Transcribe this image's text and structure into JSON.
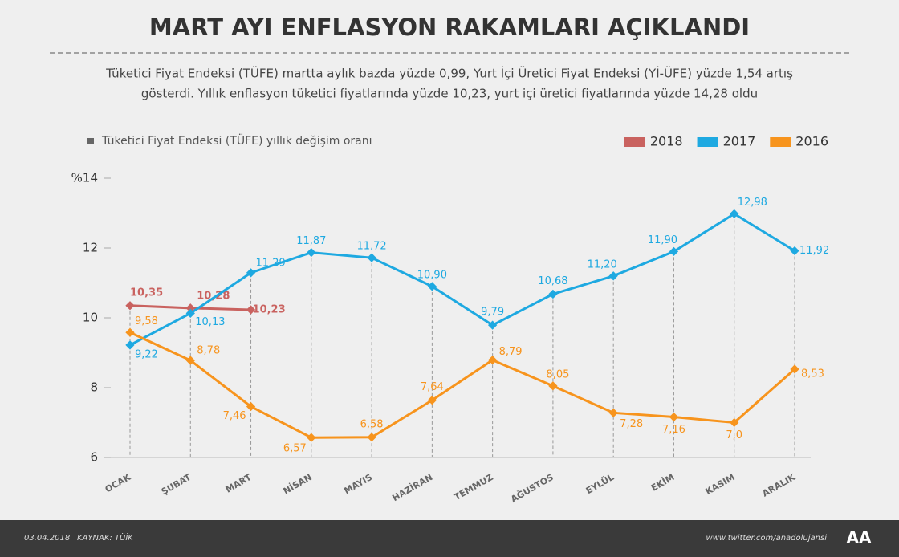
{
  "chart_data": {
    "type": "line",
    "title": "MART AYI ENFLASYON RAKAMLARI AÇIKLANDI",
    "subtitle": [
      "Tüketici Fiyat Endeksi (TÜFE) martta aylık bazda yüzde 0,99, Yurt İçi Üretici Fiyat Endeksi (Yİ-ÜFE) yüzde 1,54 artış",
      "gösterdi. Yıllık enflasyon tüketici fiyatlarında yüzde 10,23, yurt içi üretici fiyatlarında yüzde 14,28 oldu"
    ],
    "caption": "Tüketici Fiyat Endeksi (TÜFE) yıllık değişim oranı",
    "categories": [
      "OCAK",
      "ŞUBAT",
      "MART",
      "NİSAN",
      "MAYIS",
      "HAZİRAN",
      "TEMMUZ",
      "AĞUSTOS",
      "EYLÜL",
      "EKİM",
      "KASIM",
      "ARALIK"
    ],
    "series": [
      {
        "name": "2018",
        "color": "#c9625f",
        "values": [
          10.35,
          10.28,
          10.23,
          null,
          null,
          null,
          null,
          null,
          null,
          null,
          null,
          null
        ],
        "value_labels": [
          "10,35",
          "10,28",
          "10,23",
          null,
          null,
          null,
          null,
          null,
          null,
          null,
          null,
          null
        ]
      },
      {
        "name": "2017",
        "color": "#1ea9e1",
        "values": [
          9.22,
          10.13,
          11.29,
          11.87,
          11.72,
          10.9,
          9.79,
          10.68,
          11.2,
          11.9,
          12.98,
          11.92
        ],
        "value_labels": [
          "9,22",
          "10,13",
          "11,29",
          "11,87",
          "11,72",
          "10,90",
          "9,79",
          "10,68",
          "11,20",
          "11,90",
          "12,98",
          "11,92"
        ]
      },
      {
        "name": "2016",
        "color": "#f7941d",
        "values": [
          9.58,
          8.78,
          7.46,
          6.57,
          6.58,
          7.64,
          8.79,
          8.05,
          7.28,
          7.16,
          7.0,
          8.53
        ],
        "value_labels": [
          "9,58",
          "8,78",
          "7,46",
          "6,57",
          "6,58",
          "7,64",
          "8,79",
          "8,05",
          "7,28",
          "7,16",
          "7,0",
          "8,53"
        ]
      }
    ],
    "ylim": [
      6,
      14
    ],
    "yticks": [
      6,
      8,
      10,
      12,
      {
        "value": 14,
        "label": "%14"
      }
    ],
    "footer": {
      "date": "03.04.2018",
      "source": "KAYNAK: TÜİK",
      "url": "www.twitter.com/anadolujansi",
      "logo": "AA"
    }
  }
}
